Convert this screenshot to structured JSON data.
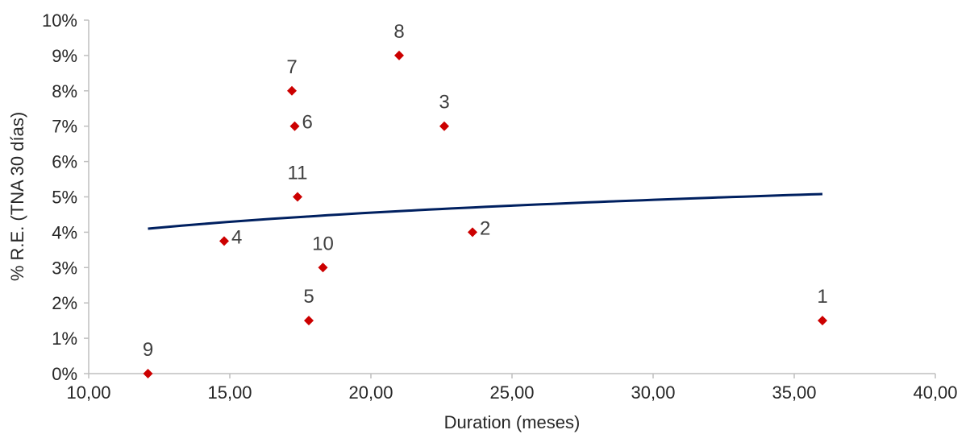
{
  "chart_data": {
    "type": "scatter",
    "xlabel": "Duration (meses)",
    "ylabel": "% R.E. (TNA 30 días)",
    "xlim": [
      10,
      40
    ],
    "ylim": [
      0,
      10
    ],
    "x_ticks": [
      "10,00",
      "15,00",
      "20,00",
      "25,00",
      "30,00",
      "35,00",
      "40,00"
    ],
    "y_ticks": [
      "0%",
      "1%",
      "2%",
      "3%",
      "4%",
      "5%",
      "6%",
      "7%",
      "8%",
      "9%",
      "10%"
    ],
    "grid": false,
    "legend": "none",
    "marker_color": "#cc0000",
    "trend_color": "#002060",
    "points": [
      {
        "label": "1",
        "x": 36.0,
        "y": 1.5
      },
      {
        "label": "2",
        "x": 23.6,
        "y": 4.0
      },
      {
        "label": "3",
        "x": 22.6,
        "y": 7.0
      },
      {
        "label": "4",
        "x": 14.8,
        "y": 3.75
      },
      {
        "label": "5",
        "x": 17.8,
        "y": 1.5
      },
      {
        "label": "6",
        "x": 17.3,
        "y": 7.0
      },
      {
        "label": "7",
        "x": 17.2,
        "y": 8.0
      },
      {
        "label": "8",
        "x": 21.0,
        "y": 9.0
      },
      {
        "label": "9",
        "x": 12.1,
        "y": 0.0
      },
      {
        "label": "10",
        "x": 18.3,
        "y": 3.0
      },
      {
        "label": "11",
        "x": 17.4,
        "y": 5.0
      }
    ],
    "trendline": {
      "type": "logarithmic",
      "x_start": 12.1,
      "x_end": 36.0,
      "y_start": 4.1,
      "y_end": 5.08
    }
  }
}
